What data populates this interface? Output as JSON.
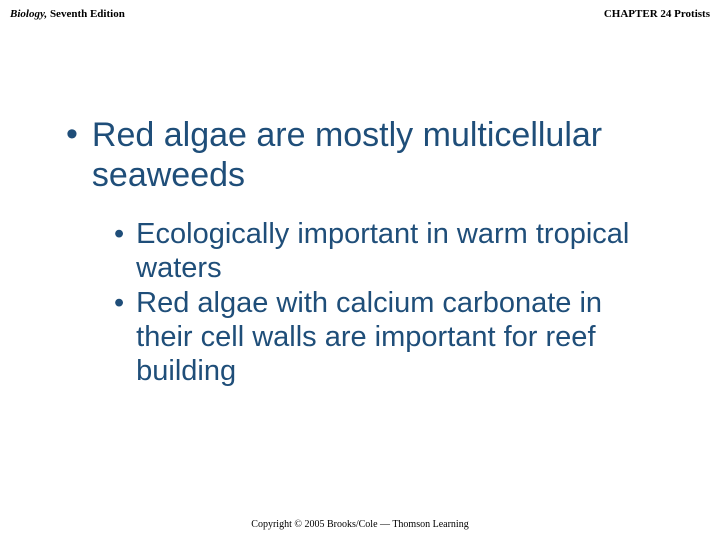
{
  "header": {
    "left_italic": "Biology,",
    "left_rest": " Seventh Edition",
    "right": "CHAPTER 24 Protists"
  },
  "slide": {
    "main_bullet": "Red algae are mostly multicellular seaweeds",
    "sub_bullets": [
      "Ecologically important in warm tropical waters",
      "Red algae with calcium carbonate in their cell walls are important for reef building"
    ]
  },
  "footer": {
    "text": "Copyright © 2005 Brooks/Cole — Thomson Learning"
  },
  "colors": {
    "text_primary": "#1f4e79",
    "header_text": "#000000",
    "background": "#ffffff"
  },
  "typography": {
    "header_fontsize": 11,
    "main_bullet_fontsize": 34,
    "sub_bullet_fontsize": 29,
    "footer_fontsize": 10
  }
}
